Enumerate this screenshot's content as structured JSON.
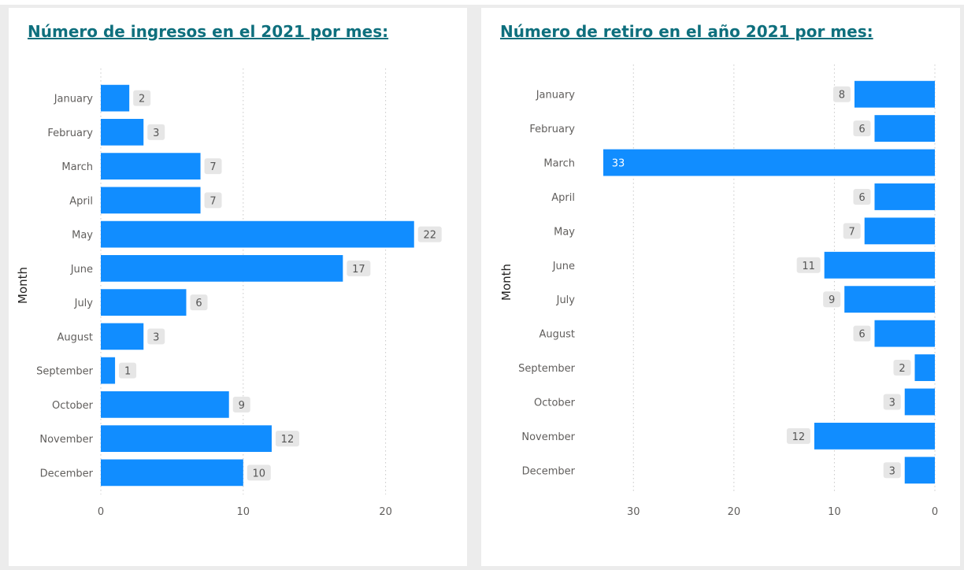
{
  "panels": {
    "left_title": "Número de ingresos en el 2021 por mes:",
    "right_title": "Número de retiro en el año 2021 por mes:"
  },
  "colors": {
    "bar": "#118dff",
    "title": "#0e6f7d",
    "grid": "#c8c8c8",
    "label_bg": "#e6e6e6",
    "label_text": "#555555",
    "tick_text": "#605e5c"
  },
  "chart_data": [
    {
      "type": "bar",
      "orientation": "horizontal",
      "title": "Número de ingresos en el 2021 por mes:",
      "ylabel": "Month",
      "xlabel": "",
      "categories": [
        "January",
        "February",
        "March",
        "April",
        "May",
        "June",
        "July",
        "August",
        "September",
        "October",
        "November",
        "December"
      ],
      "values": [
        2,
        3,
        7,
        7,
        22,
        17,
        6,
        3,
        1,
        9,
        12,
        10
      ],
      "xlim": [
        0,
        25
      ],
      "xticks": [
        0,
        10,
        20
      ],
      "reversed_x": false,
      "grid": true
    },
    {
      "type": "bar",
      "orientation": "horizontal",
      "title": "Número de retiro en el año 2021 por mes:",
      "ylabel": "Month",
      "xlabel": "",
      "categories": [
        "January",
        "February",
        "March",
        "April",
        "May",
        "June",
        "July",
        "August",
        "September",
        "October",
        "November",
        "December"
      ],
      "values": [
        8,
        6,
        33,
        6,
        7,
        11,
        9,
        6,
        2,
        3,
        12,
        3
      ],
      "xlim": [
        0,
        33
      ],
      "xticks": [
        30,
        20,
        10,
        0
      ],
      "reversed_x": true,
      "grid": true
    }
  ]
}
